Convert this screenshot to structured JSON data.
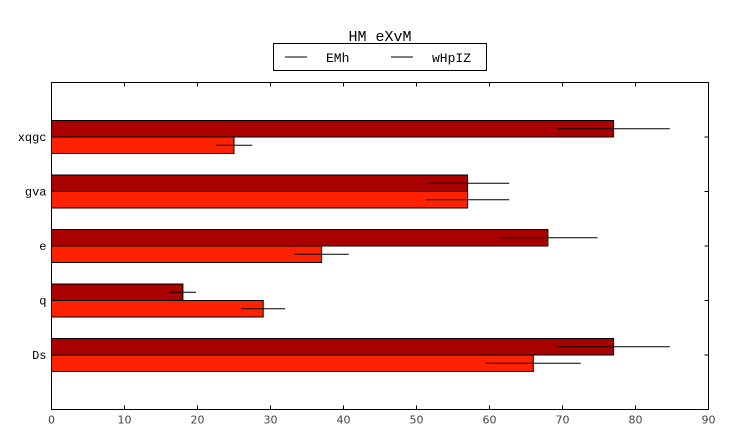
{
  "chart_data": {
    "type": "bar",
    "orientation": "horizontal",
    "title": "HM eXvM",
    "xlabel": "",
    "ylabel": "",
    "xlim": [
      0,
      90
    ],
    "xticks": [
      0,
      10,
      20,
      30,
      40,
      50,
      60,
      70,
      80,
      90
    ],
    "categories": [
      "Ds",
      "q",
      "e",
      "gva",
      "xqgc"
    ],
    "legend_position": "top-center",
    "grid": false,
    "series": [
      {
        "name": "EMh",
        "color": "#ff2200",
        "values": [
          66,
          29,
          37,
          57,
          25
        ],
        "errors": [
          6.5,
          3,
          3.7,
          5.7,
          2.5
        ]
      },
      {
        "name": "wHpIZ",
        "color": "#aa0000",
        "values": [
          77,
          18,
          68,
          57,
          77
        ],
        "errors": [
          7.7,
          1.8,
          6.8,
          5.7,
          7.7
        ]
      }
    ]
  }
}
